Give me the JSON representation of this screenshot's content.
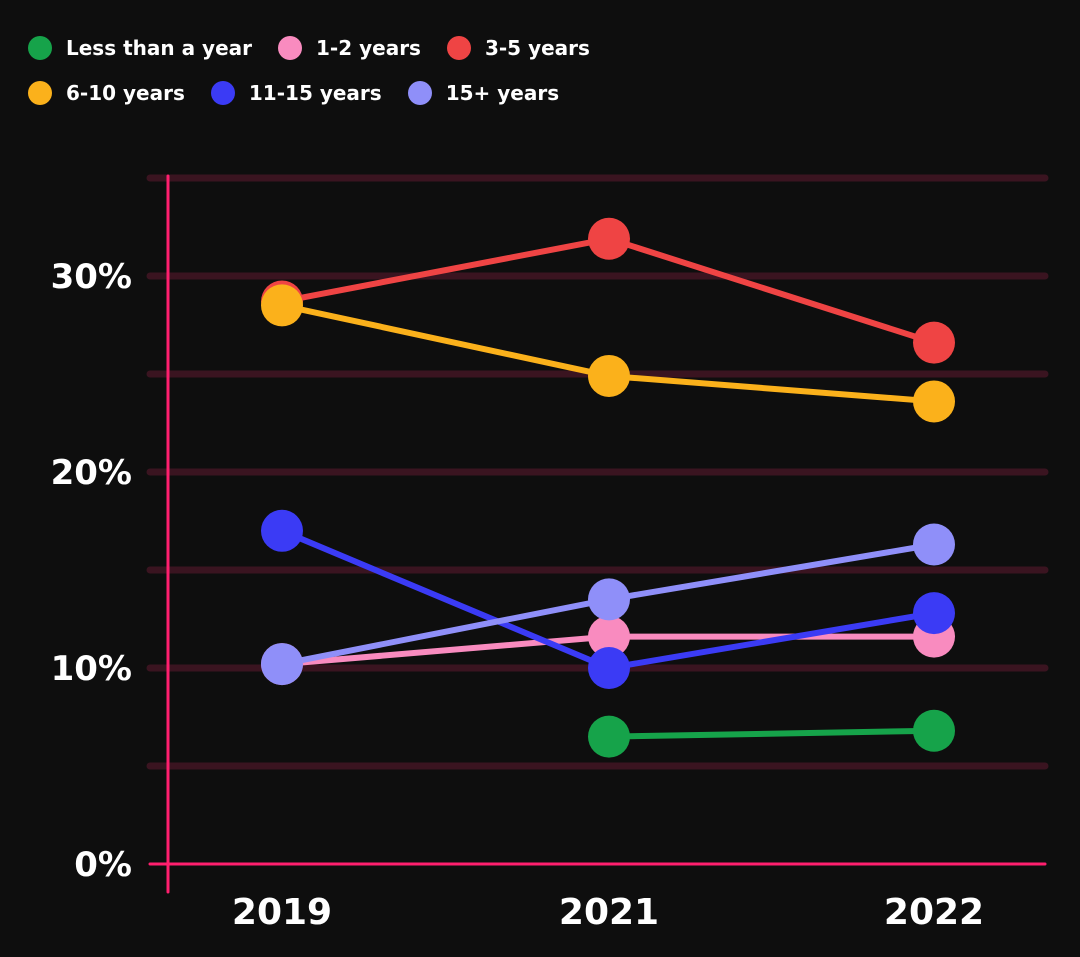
{
  "chart_data": {
    "type": "line",
    "title": "",
    "xlabel": "",
    "ylabel": "",
    "categories": [
      "2019",
      "2021",
      "2022"
    ],
    "ylim": [
      0,
      35
    ],
    "y_ticks": [
      0,
      10,
      20,
      30
    ],
    "y_tick_labels": [
      "0%",
      "10%",
      "20%",
      "30%"
    ],
    "grid": true,
    "legend_position": "top-left",
    "series": [
      {
        "name": "Less than a year",
        "color": "#16a34a",
        "values": [
          null,
          6.5,
          6.8
        ]
      },
      {
        "name": "1-2 years",
        "color": "#f98bbf",
        "values": [
          10.2,
          11.6,
          11.6
        ]
      },
      {
        "name": "3-5 years",
        "color": "#ef4444",
        "values": [
          28.7,
          31.9,
          26.6
        ]
      },
      {
        "name": "6-10 years",
        "color": "#fbb11b",
        "values": [
          28.5,
          24.9,
          23.6
        ]
      },
      {
        "name": "11-15 years",
        "color": "#3b3bf5",
        "values": [
          17.0,
          10.0,
          12.8
        ]
      },
      {
        "name": "15+ years",
        "color": "#8f8ff9",
        "values": [
          10.2,
          13.5,
          16.3
        ]
      }
    ]
  }
}
